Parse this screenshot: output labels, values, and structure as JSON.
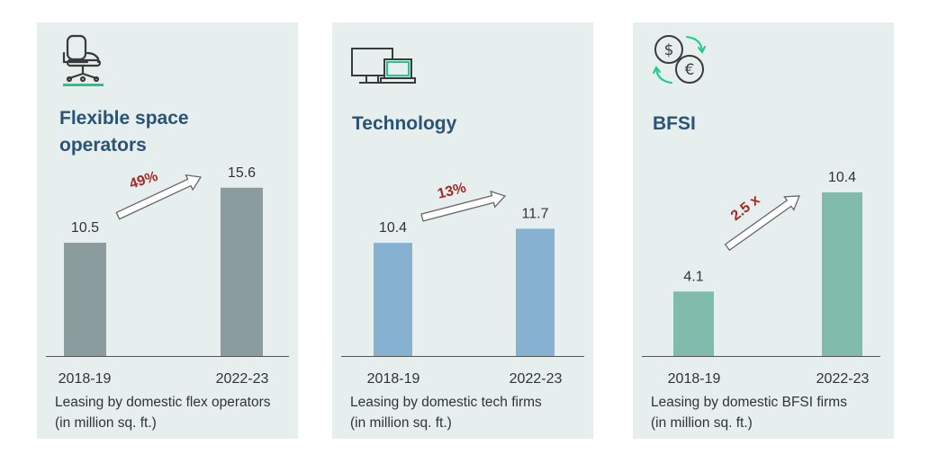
{
  "panels": [
    {
      "title_line1": "Flexible space",
      "title_line2": "operators",
      "icon": "office-chair-icon",
      "caption_line1": "Leasing by domestic flex operators",
      "caption_line2": "(in million sq. ft.)",
      "growth_label": "49%",
      "bar_color": "#8a9c9d"
    },
    {
      "title_line1": "Technology",
      "title_line2": "",
      "icon": "computer-monitor-icon",
      "caption_line1": "Leasing by domestic tech firms",
      "caption_line2": "(in million sq. ft.)",
      "growth_label": "13%",
      "bar_color": "#86b1d0"
    },
    {
      "title_line1": "BFSI",
      "title_line2": "",
      "icon": "currency-exchange-icon",
      "caption_line1": "Leasing by domestic BFSI firms",
      "caption_line2": "(in million sq. ft.)",
      "growth_label": "2.5 x",
      "bar_color": "#80bbab"
    }
  ],
  "accent_color": "#1fc98a",
  "growth_label_color": "#a42a2a",
  "chart_data": [
    {
      "type": "bar",
      "title": "Flexible space operators",
      "categories": [
        "2018-19",
        "2022-23"
      ],
      "values": [
        10.5,
        15.6
      ],
      "ylabel": "in million sq. ft.",
      "annotation": "49%"
    },
    {
      "type": "bar",
      "title": "Technology",
      "categories": [
        "2018-19",
        "2022-23"
      ],
      "values": [
        10.4,
        11.7
      ],
      "ylabel": "in million sq. ft.",
      "annotation": "13%"
    },
    {
      "type": "bar",
      "title": "BFSI",
      "categories": [
        "2018-19",
        "2022-23"
      ],
      "values": [
        4.1,
        10.4
      ],
      "ylabel": "in million sq. ft.",
      "annotation": "2.5 x"
    }
  ]
}
